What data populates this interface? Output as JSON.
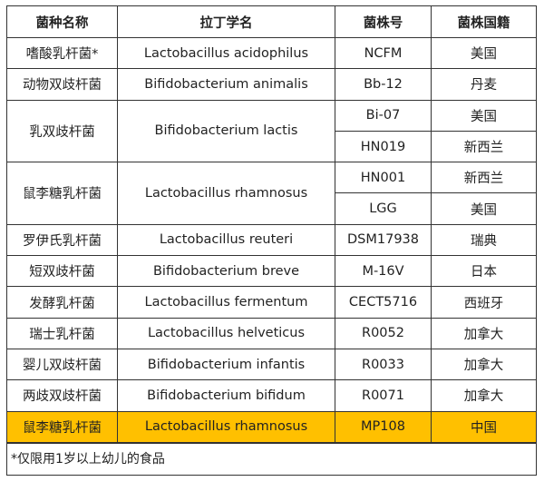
{
  "headers": [
    "菌种名称",
    "拉丁学名",
    "菌株号",
    "菌株国籍"
  ],
  "rows": [
    {
      "name": "嗜酸乳杆菌*",
      "latin": "Lactobacillus acidophilus",
      "strains": [
        {
          "id": "NCFM",
          "country": "美国"
        }
      ]
    },
    {
      "name": "动物双歧杆菌",
      "latin": "Bifidobacterium animalis",
      "strains": [
        {
          "id": "Bb-12",
          "country": "丹麦"
        }
      ]
    },
    {
      "name": "乳双歧杆菌",
      "latin": "Bifidobacterium lactis",
      "strains": [
        {
          "id": "Bi-07",
          "country": "美国"
        },
        {
          "id": "HN019",
          "country": "新西兰"
        }
      ]
    },
    {
      "name": "鼠李糖乳杆菌",
      "latin": "Lactobacillus rhamnosus",
      "strains": [
        {
          "id": "HN001",
          "country": "新西兰"
        },
        {
          "id": "LGG",
          "country": "美国"
        }
      ]
    },
    {
      "name": "罗伊氏乳杆菌",
      "latin": "Lactobacillus reuteri",
      "strains": [
        {
          "id": "DSM17938",
          "country": "瑞典"
        }
      ]
    },
    {
      "name": "短双歧杆菌",
      "latin": "Bifidobacterium breve",
      "strains": [
        {
          "id": "M-16V",
          "country": "日本"
        }
      ]
    },
    {
      "name": "发酵乳杆菌",
      "latin": "Lactobacillus fermentum",
      "strains": [
        {
          "id": "CECT5716",
          "country": "西班牙"
        }
      ]
    },
    {
      "name": "瑞士乳杆菌",
      "latin": "Lactobacillus helveticus",
      "strains": [
        {
          "id": "R0052",
          "country": "加拿大"
        }
      ]
    },
    {
      "name": "婴儿双歧杆菌",
      "latin": "Bifidobacterium infantis",
      "strains": [
        {
          "id": "R0033",
          "country": "加拿大"
        }
      ]
    },
    {
      "name": "两歧双歧杆菌",
      "latin": "Bifidobacterium bifidum",
      "strains": [
        {
          "id": "R0071",
          "country": "加拿大"
        }
      ]
    },
    {
      "name": "鼠李糖乳杆菌",
      "latin": "Lactobacillus rhamnosus",
      "strains": [
        {
          "id": "MP108",
          "country": "中国"
        }
      ],
      "highlight": true
    }
  ],
  "highlight_color": "#FFC000",
  "footnote": "*仅限用1岁以上幼儿的食品"
}
